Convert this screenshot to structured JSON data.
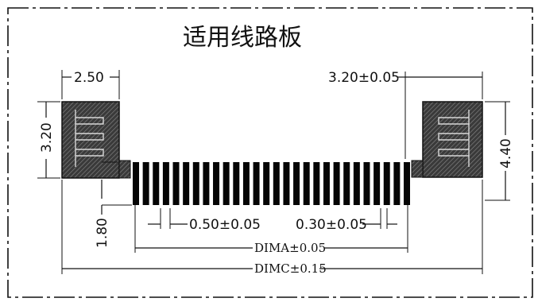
{
  "title": "适用线路板",
  "dimensions": {
    "pad_width": "2.50",
    "pad_height_left": "3.20",
    "pad_height_right": "4.40",
    "right_pad_width": "3.20±0.05",
    "finger_length": "1.80",
    "pitch": "0.50±0.05",
    "finger_width": "0.30±0.05",
    "dim_a": "DIMA±0.05",
    "dim_c": "DIMC±0.15"
  },
  "finger_count": 28
}
